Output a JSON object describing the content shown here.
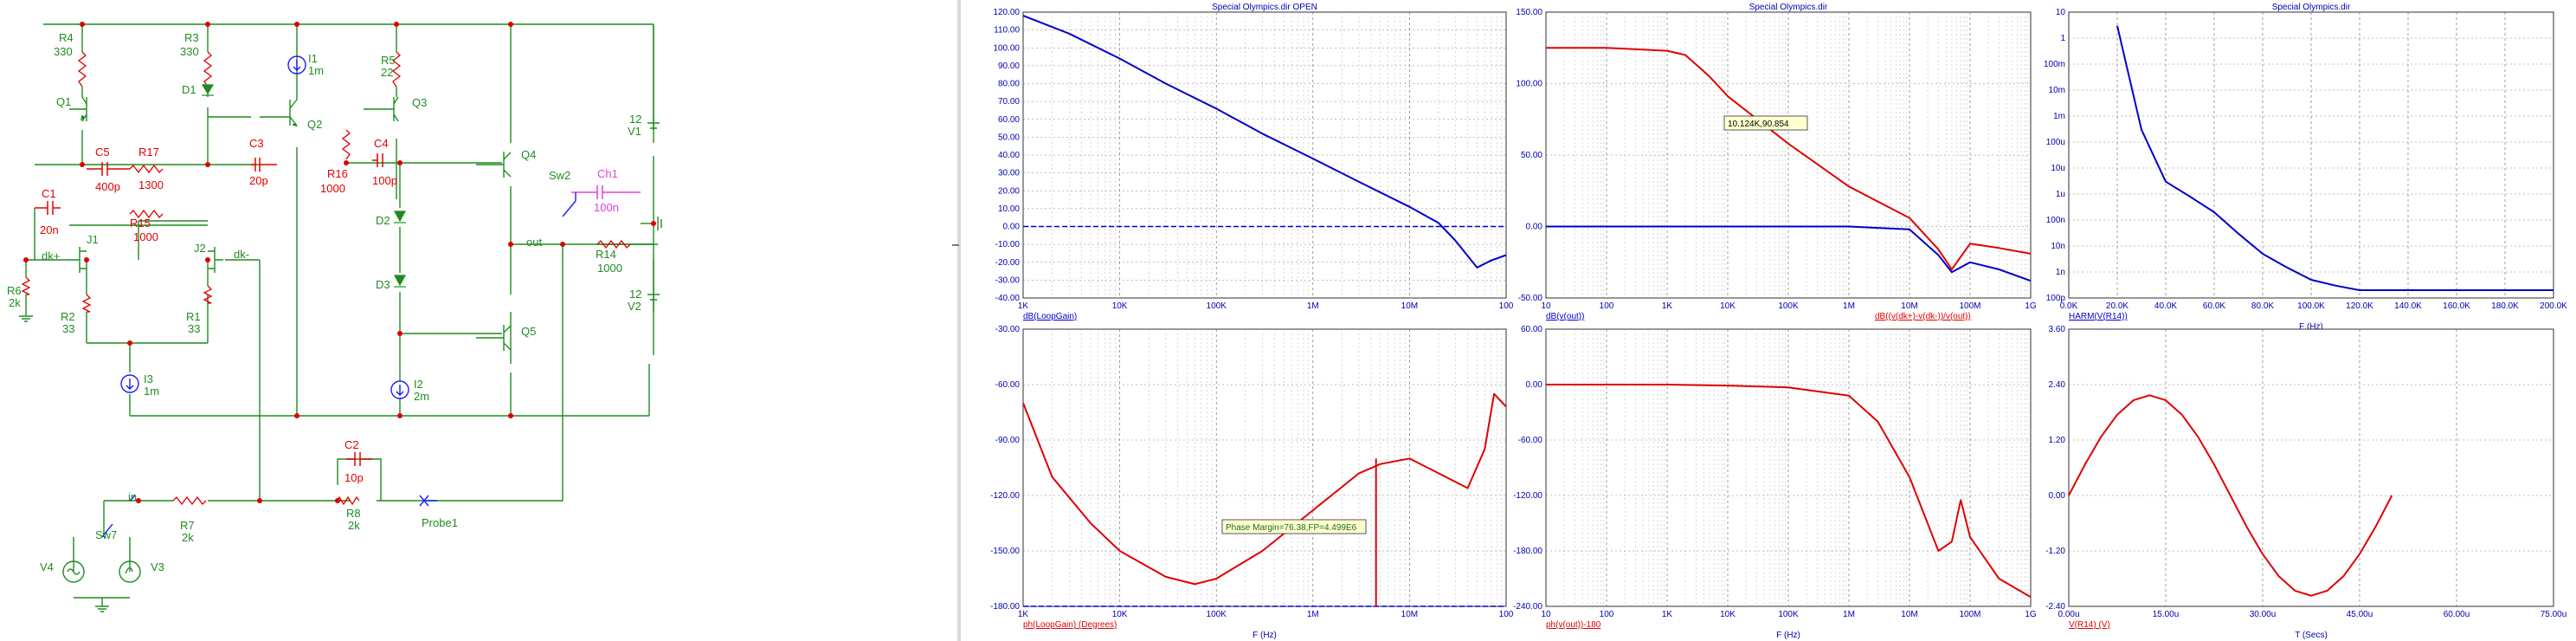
{
  "colors": {
    "wire": "#1f8c1f",
    "label_green": "#1f8c1f",
    "label_red": "#e00000",
    "node": "#e00000",
    "blue": "#1a1aff",
    "magenta": "#e040e0",
    "plot_blue": "#0000cc",
    "plot_red": "#e00000",
    "axis_text": "#0000b0",
    "cursor_label": "#1b6e1b"
  },
  "icons": {
    "ground": "ground-icon",
    "current_source": "current-source-icon",
    "voltage_source": "voltage-source-icon",
    "switch": "switch-icon",
    "probe": "probe-icon",
    "transistor": "transistor-icon",
    "diode": "diode-icon"
  },
  "schematic": {
    "components": {
      "R4": {
        "name": "R4",
        "value": "330"
      },
      "R3": {
        "name": "R3",
        "value": "330"
      },
      "I1": {
        "name": "I1",
        "value": "1m"
      },
      "R5": {
        "name": "R5",
        "value": "22"
      },
      "Q1": {
        "name": "Q1"
      },
      "Q2": {
        "name": "Q2"
      },
      "Q3": {
        "name": "Q3"
      },
      "Q4": {
        "name": "Q4"
      },
      "Q5": {
        "name": "Q5"
      },
      "D1": {
        "name": "D1"
      },
      "D2": {
        "name": "D2"
      },
      "D3": {
        "name": "D3"
      },
      "C5": {
        "name": "C5",
        "value": "400p"
      },
      "R17": {
        "name": "R17",
        "value": "1300"
      },
      "C3": {
        "name": "C3",
        "value": "20p"
      },
      "R16": {
        "name": "R16",
        "value": "1000"
      },
      "C4": {
        "name": "C4",
        "value": "100p"
      },
      "C1": {
        "name": "C1",
        "value": "20n"
      },
      "R15": {
        "name": "R15",
        "value": "1000"
      },
      "J1": {
        "name": "J1"
      },
      "J2": {
        "name": "J2"
      },
      "R6": {
        "name": "R6",
        "value": "2k"
      },
      "R2": {
        "name": "R2",
        "value": "33"
      },
      "R1": {
        "name": "R1",
        "value": "33"
      },
      "I3": {
        "name": "I3",
        "value": "1m"
      },
      "I2": {
        "name": "I2",
        "value": "2m"
      },
      "V1": {
        "name": "V1",
        "value": "12"
      },
      "V2": {
        "name": "V2",
        "value": "12"
      },
      "Sw2": {
        "name": "Sw2"
      },
      "Ch1": {
        "name": "Ch1",
        "value": "100n"
      },
      "R14": {
        "name": "R14",
        "value": "1000"
      },
      "C2": {
        "name": "C2",
        "value": "10p"
      },
      "R7": {
        "name": "R7",
        "value": "2k"
      },
      "R8": {
        "name": "R8",
        "value": "2k"
      },
      "Sw7": {
        "name": "Sw7"
      },
      "V4": {
        "name": "V4"
      },
      "V3": {
        "name": "V3"
      },
      "Probe1": {
        "name": "Probe1"
      }
    },
    "nodes": {
      "out": "out",
      "in": "in",
      "dk_plus": "dk+",
      "dk_minus": "dk-"
    }
  },
  "plots": [
    {
      "title": "Special Olympics.dir OPEN",
      "xscale": "log",
      "x_ticks": [
        "1K",
        "10K",
        "100K",
        "1M",
        "10M",
        "100"
      ],
      "y_ticks": [
        "120.00",
        "110.00",
        "100.00",
        "90.00",
        "80.00",
        "70.00",
        "60.00",
        "50.00",
        "40.00",
        "30.00",
        "20.00",
        "10.00",
        "0.00",
        "-10.00",
        "-20.00",
        "-30.00",
        "-40.00"
      ],
      "trace_labels": [
        "dB(LoopGain)"
      ],
      "xlabel": "",
      "ylim": [
        -40,
        120
      ],
      "chart_data": {
        "type": "line",
        "x": [
          1000,
          3000,
          10000,
          30000,
          100000,
          300000,
          1000000,
          3000000,
          10000000,
          20000000,
          30000000,
          50000000,
          70000000,
          100000000
        ],
        "series": [
          {
            "name": "dB(LoopGain)",
            "values": [
              118,
              108,
              94,
              80,
              66,
              52,
              38,
              25,
              11,
              2,
              -8,
              -23,
              -19,
              -16
            ]
          }
        ],
        "reference_line": 0
      }
    },
    {
      "title": "Special Olympics.dir",
      "xscale": "log",
      "x_ticks": [
        "10",
        "100",
        "1K",
        "10K",
        "100K",
        "1M",
        "10M",
        "100M",
        "1G"
      ],
      "y_ticks": [
        "150.00",
        "100.00",
        "50.00",
        "0.00",
        "-50.00"
      ],
      "trace_labels": [
        "dB(v(out))",
        "dB((v(dk+)-v(dk-))/v(out))"
      ],
      "xlabel": "",
      "ylim": [
        -50,
        150
      ],
      "cursor_label": "10.124K,90.854",
      "chart_data": {
        "type": "line",
        "x": [
          10,
          100,
          1000,
          2000,
          5000,
          10124,
          100000,
          1000000,
          10000000,
          30000000,
          50000000,
          100000000,
          300000000,
          1000000000
        ],
        "series": [
          {
            "name": "dB(v(out))",
            "values": [
              0,
              0,
              0,
              0,
              0,
              0,
              0,
              0,
              -2,
              -20,
              -32,
              -25,
              -30,
              -38
            ]
          },
          {
            "name": "dB((v(dk+)-v(dk-))/v(out))",
            "values": [
              125,
              125,
              123,
              120,
              105,
              91,
              58,
              28,
              6,
              -16,
              -30,
              -12,
              -15,
              -19
            ]
          }
        ]
      }
    },
    {
      "title": "Special Olympics.dir",
      "xscale": "linear",
      "x_ticks": [
        "0.0K",
        "20.0K",
        "40.0K",
        "60.0K",
        "80.0K",
        "100.0K",
        "120.0K",
        "140.0K",
        "160.0K",
        "180.0K",
        "200.0K"
      ],
      "y_ticks": [
        "10",
        "1",
        "100m",
        "10m",
        "1m",
        "100u",
        "10u",
        "1u",
        "100n",
        "10n",
        "1n",
        "100p"
      ],
      "trace_labels": [
        "HARM(V(R14))"
      ],
      "xlabel": "F (Hz)",
      "xlim": [
        0,
        200000
      ],
      "chart_data": {
        "type": "line",
        "x": [
          20000,
          30000,
          40000,
          50000,
          60000,
          70000,
          80000,
          90000,
          100000,
          110000,
          120000,
          140000,
          160000,
          180000,
          200000
        ],
        "series": [
          {
            "name": "HARM(V(R14))",
            "values": [
              3,
              0.0003,
              3e-06,
              8e-07,
              2e-07,
              3e-08,
              5e-09,
              1.5e-09,
              5e-10,
              3e-10,
              2e-10,
              2e-10,
              2e-10,
              2e-10,
              2e-10
            ]
          }
        ]
      }
    },
    {
      "title": "",
      "xscale": "log",
      "x_ticks": [
        "1K",
        "10K",
        "100K",
        "1M",
        "10M",
        "100"
      ],
      "y_ticks": [
        "-30.00",
        "-60.00",
        "-90.00",
        "-120.00",
        "-150.00",
        "-180.00"
      ],
      "trace_labels": [
        "ph(LoopGain) (Degrees)"
      ],
      "xlabel": "F (Hz)",
      "ylim": [
        -180,
        -30
      ],
      "cursor_label": "Phase Margin=76.38,FP=4.499E6",
      "chart_data": {
        "type": "line",
        "x": [
          1000,
          2000,
          5000,
          10000,
          30000,
          60000,
          100000,
          300000,
          1000000,
          3000000,
          5000000,
          10000000,
          20000000,
          40000000,
          60000000,
          75000000,
          100000000
        ],
        "series": [
          {
            "name": "ph(LoopGain)",
            "values": [
              -70,
              -110,
              -135,
              -150,
              -164,
              -168,
              -165,
              -150,
              -128,
              -108,
              -103,
              -100,
              -108,
              -116,
              -95,
              -65,
              -72
            ]
          }
        ],
        "reference_line": -180,
        "marker_x": 4499000
      }
    },
    {
      "title": "",
      "xscale": "log",
      "x_ticks": [
        "10",
        "100",
        "1K",
        "10K",
        "100K",
        "1M",
        "10M",
        "100M",
        "1G"
      ],
      "y_ticks": [
        "60.00",
        "0.00",
        "-60.00",
        "-120.00",
        "-180.00",
        "-240.00"
      ],
      "trace_labels": [
        "ph(v(out))-180"
      ],
      "xlabel": "F (Hz)",
      "ylim": [
        -240,
        60
      ],
      "chart_data": {
        "type": "line",
        "x": [
          10,
          100,
          1000,
          10000,
          100000,
          1000000,
          3000000,
          10000000,
          30000000,
          50000000,
          70000000,
          100000000,
          300000000,
          1000000000
        ],
        "series": [
          {
            "name": "ph(v(out))-180",
            "values": [
              0,
              0,
              0,
              -1,
              -3,
              -12,
              -40,
              -100,
              -180,
              -170,
              -125,
              -165,
              -210,
              -230
            ]
          }
        ]
      }
    },
    {
      "title": "",
      "xscale": "linear",
      "x_ticks": [
        "0.00u",
        "15.00u",
        "30.00u",
        "45.00u",
        "60.00u",
        "75.00u"
      ],
      "y_ticks": [
        "3.60",
        "2.40",
        "1.20",
        "0.00",
        "-1.20",
        "-2.40"
      ],
      "trace_labels": [
        "V(R14) (V)"
      ],
      "xlabel": "T (Secs)",
      "xlim": [
        0,
        7.5e-05
      ],
      "ylim": [
        -2.4,
        3.6
      ],
      "chart_data": {
        "type": "line",
        "x": [
          0,
          2.5e-06,
          5e-06,
          7.5e-06,
          1e-05,
          1.25e-05,
          1.5e-05,
          1.75e-05,
          2e-05,
          2.25e-05,
          2.5e-05,
          2.75e-05,
          3e-05,
          3.25e-05,
          3.5e-05,
          3.75e-05,
          4e-05,
          4.25e-05,
          4.5e-05,
          4.75e-05,
          5e-05
        ],
        "series": [
          {
            "name": "V(R14)",
            "values": [
              0,
              0.67,
              1.27,
              1.75,
              2.06,
              2.17,
              2.06,
              1.75,
              1.27,
              0.67,
              0,
              -0.67,
              -1.27,
              -1.75,
              -2.06,
              -2.17,
              -2.06,
              -1.75,
              -1.27,
              -0.67,
              0
            ]
          }
        ]
      }
    }
  ]
}
